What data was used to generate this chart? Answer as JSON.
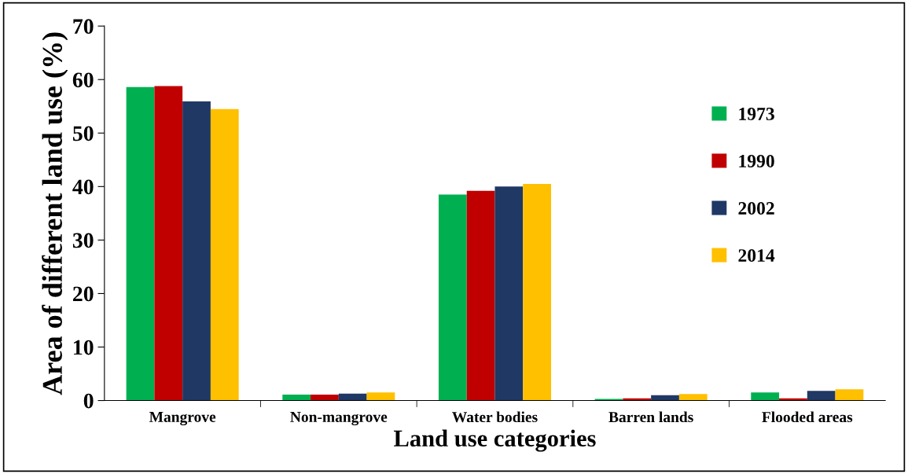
{
  "chart_data": {
    "type": "bar",
    "xlabel": "Land use categories",
    "ylabel": "Area of different land use (%)",
    "categories": [
      "Mangrove",
      "Non-mangrove",
      "Water bodies",
      "Barren lands",
      "Flooded areas"
    ],
    "series": [
      {
        "name": "1973",
        "color": "#00b050",
        "values": [
          58.6,
          1.1,
          38.5,
          0.3,
          1.5
        ]
      },
      {
        "name": "1990",
        "color": "#c00000",
        "values": [
          58.8,
          1.1,
          39.2,
          0.4,
          0.4
        ]
      },
      {
        "name": "2002",
        "color": "#203864",
        "values": [
          55.9,
          1.3,
          40.0,
          1.0,
          1.8
        ]
      },
      {
        "name": "2014",
        "color": "#ffc000",
        "values": [
          54.5,
          1.5,
          40.5,
          1.2,
          2.1
        ]
      }
    ],
    "ylim": [
      0,
      70
    ],
    "yticks": [
      0,
      10,
      20,
      30,
      40,
      50,
      60,
      70
    ],
    "grid": false,
    "legend": "right"
  }
}
